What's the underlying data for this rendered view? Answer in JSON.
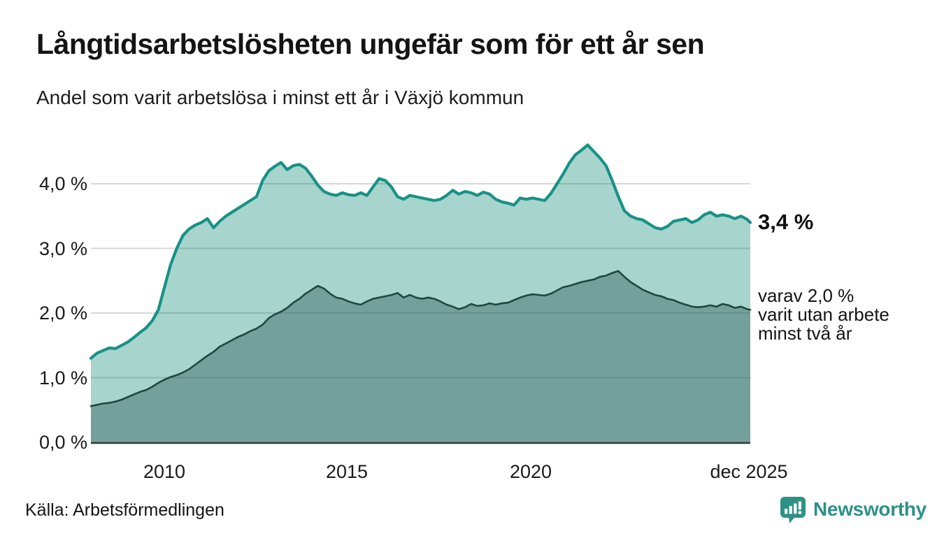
{
  "header": {
    "title": "Långtidsarbetslösheten ungefär som för ett år sen",
    "subtitle": "Andel som varit arbetslösa i minst ett år i Växjö kommun"
  },
  "annotations": {
    "latest_value": "3,4 %",
    "secondary_line1": "varav 2,0 %",
    "secondary_line2": "varit utan arbete",
    "secondary_line3": "minst två år"
  },
  "footer": {
    "source": "Källa: Arbetsförmedlingen",
    "brand": "Newsworthy",
    "brand_icon": "bar-chart-speech-bubble-icon"
  },
  "colors": {
    "series1_line": "#179286",
    "series1_fill": "#a7d5ce",
    "series2_line": "#20473f",
    "series2_fill": "#74a09b",
    "gridline": "rgba(60,80,78,0.22)",
    "baseline": "#2f3a38",
    "brand_teal": "#2d9186",
    "text": "#141414"
  },
  "chart_data": {
    "type": "area",
    "title": "Långtidsarbetslösheten ungefär som för ett år sen",
    "subtitle": "Andel som varit arbetslösa i minst ett år i Växjö kommun",
    "unit": "%",
    "grid": true,
    "legend": "end-labels",
    "x_range": [
      2008.0,
      2025.92
    ],
    "points_per_year": 6,
    "ylim": [
      0.0,
      4.65
    ],
    "y_tick_values": [
      4.0,
      3.0,
      2.0,
      1.0,
      0.0
    ],
    "y_ticks": [
      "4,0 %",
      "3,0 %",
      "2,0 %",
      "1,0 %",
      "0,0 %"
    ],
    "x_tick_values": [
      2010,
      2015,
      2020,
      2025.92
    ],
    "x_ticks": [
      "2010",
      "2015",
      "2020",
      "dec 2025"
    ],
    "series": [
      {
        "name": "Andel som varit arbetslösa i minst ett år",
        "end_label": "3,4 %",
        "end_value": 3.4,
        "values": [
          1.3,
          1.38,
          1.42,
          1.46,
          1.45,
          1.5,
          1.55,
          1.62,
          1.7,
          1.77,
          1.88,
          2.05,
          2.4,
          2.75,
          3.0,
          3.2,
          3.3,
          3.36,
          3.4,
          3.46,
          3.32,
          3.42,
          3.5,
          3.56,
          3.62,
          3.68,
          3.74,
          3.8,
          4.05,
          4.2,
          4.27,
          4.33,
          4.22,
          4.28,
          4.3,
          4.24,
          4.12,
          3.98,
          3.88,
          3.84,
          3.82,
          3.86,
          3.83,
          3.82,
          3.86,
          3.82,
          3.95,
          4.08,
          4.05,
          3.95,
          3.8,
          3.76,
          3.82,
          3.8,
          3.78,
          3.76,
          3.74,
          3.76,
          3.82,
          3.9,
          3.84,
          3.88,
          3.86,
          3.82,
          3.87,
          3.84,
          3.76,
          3.72,
          3.7,
          3.67,
          3.78,
          3.76,
          3.78,
          3.76,
          3.74,
          3.85,
          4.0,
          4.15,
          4.32,
          4.45,
          4.52,
          4.6,
          4.5,
          4.4,
          4.28,
          4.05,
          3.8,
          3.58,
          3.5,
          3.46,
          3.44,
          3.38,
          3.32,
          3.3,
          3.34,
          3.42,
          3.44,
          3.46,
          3.4,
          3.44,
          3.52,
          3.56,
          3.5,
          3.52,
          3.5,
          3.46,
          3.5,
          3.45,
          3.4
        ]
      },
      {
        "name": "varav varit utan arbete minst två år",
        "end_label": "varav 2,0 % varit utan arbete minst två år",
        "end_value": 2.0,
        "values": [
          0.56,
          0.58,
          0.6,
          0.61,
          0.63,
          0.66,
          0.7,
          0.74,
          0.78,
          0.81,
          0.86,
          0.92,
          0.97,
          1.01,
          1.04,
          1.08,
          1.13,
          1.2,
          1.27,
          1.34,
          1.4,
          1.48,
          1.53,
          1.58,
          1.63,
          1.67,
          1.72,
          1.76,
          1.82,
          1.92,
          1.98,
          2.02,
          2.08,
          2.16,
          2.22,
          2.3,
          2.36,
          2.42,
          2.38,
          2.3,
          2.24,
          2.22,
          2.18,
          2.15,
          2.13,
          2.18,
          2.22,
          2.24,
          2.26,
          2.28,
          2.31,
          2.24,
          2.28,
          2.24,
          2.22,
          2.24,
          2.22,
          2.18,
          2.13,
          2.1,
          2.06,
          2.09,
          2.14,
          2.11,
          2.12,
          2.15,
          2.13,
          2.15,
          2.16,
          2.2,
          2.24,
          2.27,
          2.29,
          2.28,
          2.27,
          2.3,
          2.35,
          2.4,
          2.42,
          2.45,
          2.48,
          2.5,
          2.52,
          2.56,
          2.58,
          2.62,
          2.65,
          2.56,
          2.48,
          2.42,
          2.36,
          2.32,
          2.28,
          2.26,
          2.22,
          2.2,
          2.16,
          2.13,
          2.1,
          2.09,
          2.1,
          2.12,
          2.1,
          2.14,
          2.12,
          2.08,
          2.1,
          2.06,
          2.05
        ]
      }
    ]
  }
}
